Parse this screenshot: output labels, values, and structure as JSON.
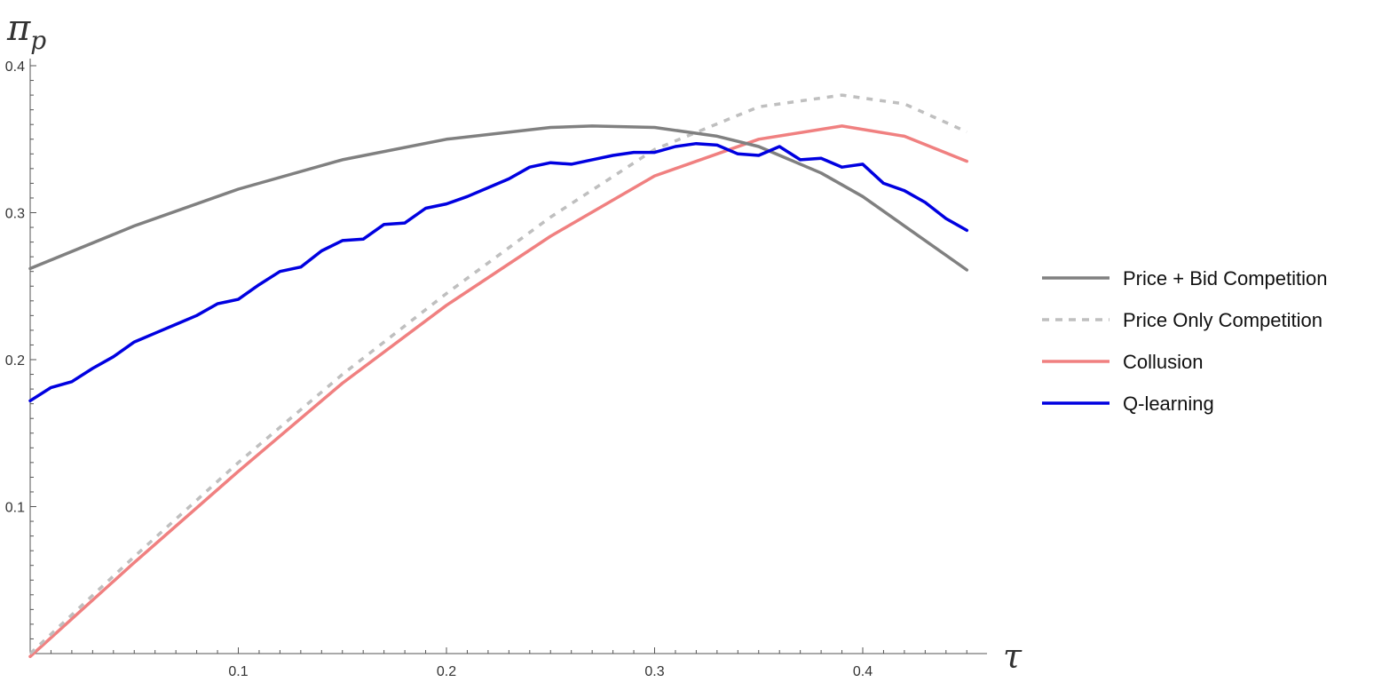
{
  "chart_data": {
    "type": "line",
    "title": "",
    "xlabel": "τ",
    "ylabel": "π",
    "ylabel_subscript": "p",
    "xlim": [
      0,
      0.46
    ],
    "ylim": [
      0,
      0.4
    ],
    "x_ticks": [
      0.1,
      0.2,
      0.3,
      0.4
    ],
    "x_tick_labels": [
      "0.1",
      "0.2",
      "0.3",
      "0.4"
    ],
    "y_ticks": [
      0.1,
      0.2,
      0.3,
      0.4
    ],
    "y_tick_labels": [
      "0.1",
      "0.2",
      "0.3",
      "0.4"
    ],
    "grid": false,
    "legend_position": "right",
    "series": [
      {
        "name": "Price + Bid Competition",
        "color": "#808080",
        "dash": "solid",
        "x": [
          0.0,
          0.05,
          0.1,
          0.15,
          0.2,
          0.25,
          0.27,
          0.3,
          0.33,
          0.35,
          0.38,
          0.4,
          0.42,
          0.45
        ],
        "y": [
          0.262,
          0.291,
          0.316,
          0.336,
          0.35,
          0.358,
          0.359,
          0.358,
          0.352,
          0.345,
          0.327,
          0.311,
          0.291,
          0.261
        ]
      },
      {
        "name": "Price Only Competition",
        "color": "#bfbfbf",
        "dash": "dashed",
        "x": [
          0.0,
          0.05,
          0.1,
          0.15,
          0.2,
          0.25,
          0.3,
          0.35,
          0.39,
          0.42,
          0.45
        ],
        "y": [
          0.0,
          0.066,
          0.13,
          0.19,
          0.245,
          0.297,
          0.343,
          0.372,
          0.38,
          0.374,
          0.355
        ]
      },
      {
        "name": "Collusion",
        "color": "#f08080",
        "dash": "solid",
        "x": [
          0.0,
          0.05,
          0.1,
          0.15,
          0.2,
          0.25,
          0.3,
          0.35,
          0.39,
          0.42,
          0.45
        ],
        "y": [
          -0.002,
          0.062,
          0.124,
          0.184,
          0.237,
          0.284,
          0.325,
          0.35,
          0.359,
          0.352,
          0.335
        ]
      },
      {
        "name": "Q-learning",
        "color": "#0000e0",
        "dash": "solid",
        "x": [
          0.0,
          0.01,
          0.02,
          0.03,
          0.04,
          0.05,
          0.06,
          0.07,
          0.08,
          0.09,
          0.1,
          0.11,
          0.12,
          0.13,
          0.14,
          0.15,
          0.16,
          0.17,
          0.18,
          0.19,
          0.2,
          0.21,
          0.22,
          0.23,
          0.24,
          0.25,
          0.26,
          0.27,
          0.28,
          0.29,
          0.3,
          0.31,
          0.32,
          0.33,
          0.34,
          0.35,
          0.36,
          0.37,
          0.38,
          0.39,
          0.4,
          0.41,
          0.42,
          0.43,
          0.44,
          0.45
        ],
        "y": [
          0.172,
          0.181,
          0.185,
          0.194,
          0.202,
          0.212,
          0.218,
          0.224,
          0.23,
          0.238,
          0.241,
          0.251,
          0.26,
          0.263,
          0.274,
          0.281,
          0.282,
          0.292,
          0.293,
          0.303,
          0.306,
          0.311,
          0.317,
          0.323,
          0.331,
          0.334,
          0.333,
          0.336,
          0.339,
          0.341,
          0.341,
          0.345,
          0.347,
          0.346,
          0.34,
          0.339,
          0.345,
          0.336,
          0.337,
          0.331,
          0.333,
          0.32,
          0.315,
          0.307,
          0.296,
          0.288
        ]
      }
    ]
  }
}
